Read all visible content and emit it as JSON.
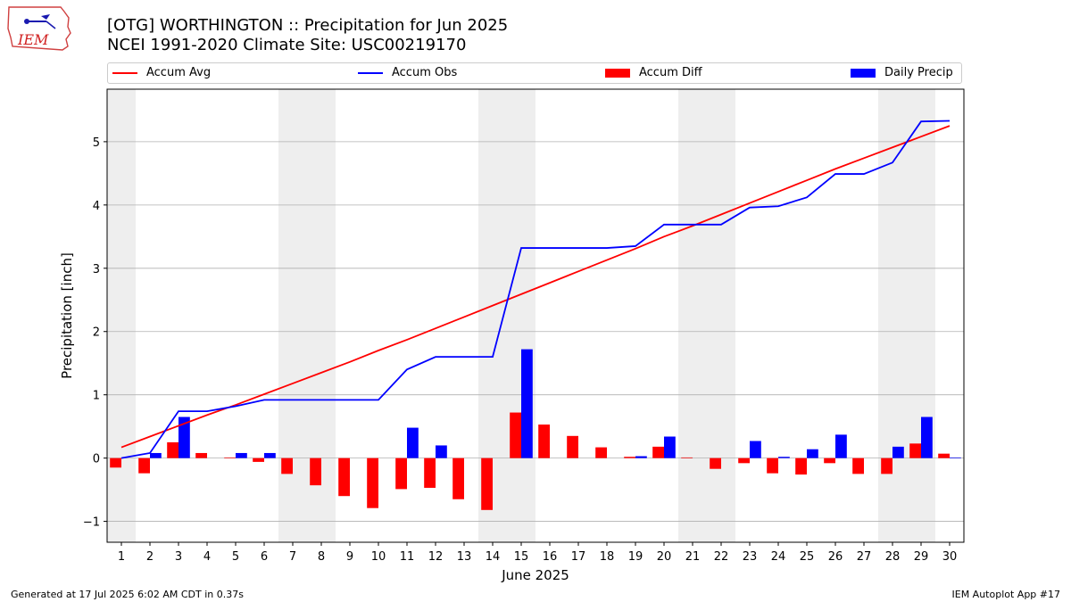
{
  "title_line1": "[OTG] WORTHINGTON :: Precipitation for Jun 2025",
  "title_line2": "NCEI 1991-2020 Climate Site: USC00219170",
  "logo_text": "IEM",
  "footer_left": "Generated at 17 Jul 2025 6:02 AM CDT in 0.37s",
  "footer_right": "IEM Autoplot App #17",
  "colors": {
    "accum_avg": "#ff0000",
    "accum_obs": "#0000ff",
    "accum_diff": "#ff0000",
    "daily_precip": "#0000ff",
    "weekend_shade": "#eeeeee",
    "grid": "#b0b0b0"
  },
  "chart_data": {
    "type": "bar",
    "xlabel": "June 2025",
    "ylabel": "Precipitation [inch]",
    "xlim": [
      0.5,
      30.5
    ],
    "ylim": [
      -1.33,
      5.83
    ],
    "yticks": [
      -1,
      0,
      1,
      2,
      3,
      4,
      5
    ],
    "ytick_labels": [
      "−1",
      "0",
      "1",
      "2",
      "3",
      "4",
      "5"
    ],
    "grid": "horizontal",
    "legend": "top, horizontal",
    "days": [
      1,
      2,
      3,
      4,
      5,
      6,
      7,
      8,
      9,
      10,
      11,
      12,
      13,
      14,
      15,
      16,
      17,
      18,
      19,
      20,
      21,
      22,
      23,
      24,
      25,
      26,
      27,
      28,
      29,
      30
    ],
    "shaded_days": [
      1,
      7,
      8,
      14,
      15,
      21,
      22,
      28,
      29
    ],
    "series": [
      {
        "name": "Accum Avg",
        "kind": "line",
        "values": [
          0.17,
          0.34,
          0.51,
          0.68,
          0.84,
          1.01,
          1.18,
          1.35,
          1.52,
          1.7,
          1.87,
          2.05,
          2.23,
          2.41,
          2.59,
          2.77,
          2.95,
          3.13,
          3.31,
          3.5,
          3.67,
          3.85,
          4.03,
          4.21,
          4.39,
          4.57,
          4.74,
          4.91,
          5.08,
          5.25
        ]
      },
      {
        "name": "Accum Obs",
        "kind": "line",
        "values": [
          0.0,
          0.08,
          0.74,
          0.74,
          0.82,
          0.92,
          0.92,
          0.92,
          0.92,
          0.92,
          1.4,
          1.6,
          1.6,
          1.6,
          3.32,
          3.32,
          3.32,
          3.32,
          3.35,
          3.69,
          3.69,
          3.69,
          3.96,
          3.98,
          4.12,
          4.49,
          4.49,
          4.67,
          5.32,
          5.33
        ]
      },
      {
        "name": "Accum Diff",
        "kind": "bar",
        "values": [
          -0.15,
          -0.24,
          0.25,
          0.08,
          0.01,
          -0.06,
          -0.25,
          -0.43,
          -0.6,
          -0.79,
          -0.49,
          -0.47,
          -0.65,
          -0.82,
          0.72,
          0.53,
          0.35,
          0.17,
          0.02,
          0.18,
          0.01,
          -0.17,
          -0.08,
          -0.24,
          -0.26,
          -0.08,
          -0.25,
          -0.25,
          0.23,
          0.07
        ]
      },
      {
        "name": "Daily Precip",
        "kind": "bar",
        "values": [
          0.0,
          0.08,
          0.65,
          0.0,
          0.08,
          0.08,
          0.0,
          0.0,
          0.0,
          0.0,
          0.48,
          0.2,
          0.0,
          0.0,
          1.72,
          0.0,
          0.0,
          0.0,
          0.03,
          0.34,
          0.0,
          0.0,
          0.27,
          0.02,
          0.14,
          0.37,
          0.0,
          0.18,
          0.65,
          0.01
        ]
      }
    ]
  }
}
